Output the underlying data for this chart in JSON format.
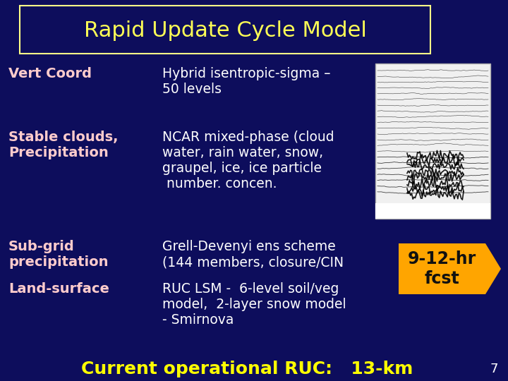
{
  "title": "Rapid Update Cycle Model",
  "bg_color": "#0d0d5c",
  "title_color": "#ffff55",
  "title_box_edge": "#ffff88",
  "title_box_bg": "#0d0d5c",
  "label_color": "#ffcccc",
  "body_color": "#ffffff",
  "yellow_color": "#ffff00",
  "orange_color": "#ffa500",
  "rows": [
    {
      "label": "Vert Coord",
      "label2": "",
      "body": "Hybrid isentropic-sigma –\n50 levels"
    },
    {
      "label": "Stable clouds,",
      "label2": "Precipitation",
      "body": "NCAR mixed-phase (cloud\nwater, rain water, snow,\ngraupel, ice, ice particle\n number. concen."
    },
    {
      "label": "Sub-grid",
      "label2": "precipitation",
      "body": "Grell-Devenyi ens scheme\n(144 members, closure/CIN"
    },
    {
      "label": "Land-surface",
      "label2": "",
      "body": "RUC LSM -  6-level soil/veg\nmodel,  2-layer snow model\n- Smirnova"
    }
  ],
  "arrow_text": "9-12-hr\nfcst",
  "bottom_text": "Current operational RUC:   13-km",
  "page_number": "7",
  "fig_width": 7.2,
  "fig_height": 5.4,
  "dpi": 100
}
